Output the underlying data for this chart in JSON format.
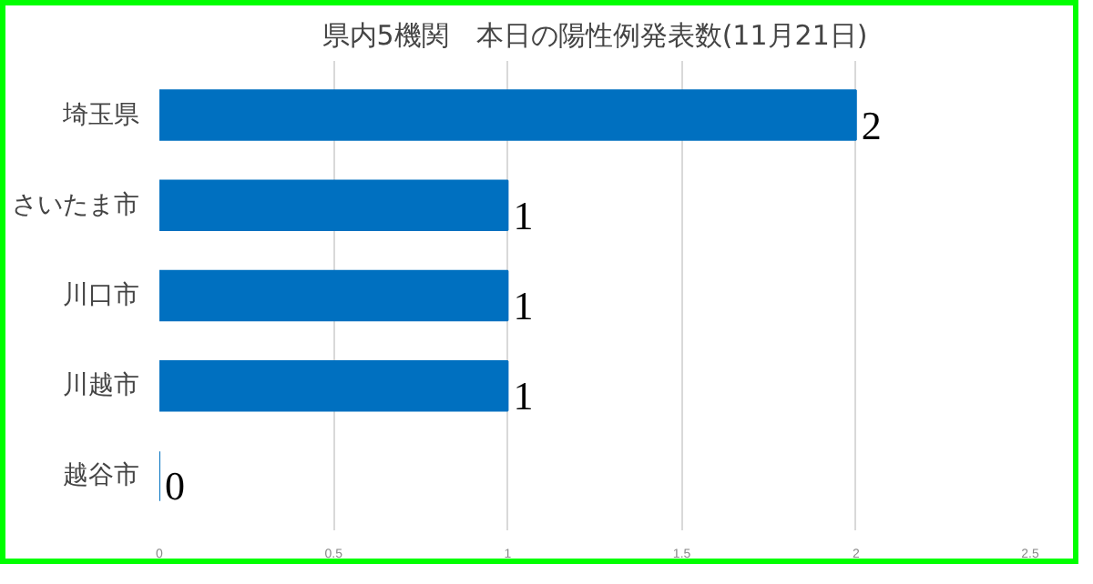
{
  "chart_data": {
    "type": "bar",
    "orientation": "horizontal",
    "title": "県内5機関　本日の陽性例発表数(11月21日)",
    "categories": [
      "埼玉県",
      "さいたま市",
      "川口市",
      "川越市",
      "越谷市"
    ],
    "values": [
      2,
      1,
      1,
      1,
      0
    ],
    "color": "#0070c0",
    "xlim": [
      0,
      2.5
    ],
    "xticks": [
      0,
      0.5,
      1,
      1.5,
      2,
      2.5
    ],
    "grid": "x",
    "data_labels": true
  }
}
